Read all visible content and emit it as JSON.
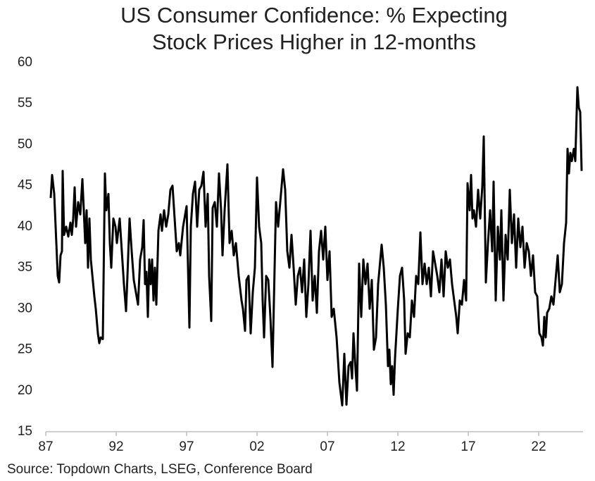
{
  "chart_data": {
    "type": "line",
    "title": [
      "US Consumer Confidence: % Expecting",
      "Stock Prices Higher in 12-months"
    ],
    "source": "Source: Topdown Charts, LSEG, Conference Board",
    "color": "#000000",
    "xlim": [
      1987,
      2025.15
    ],
    "xticks": [
      {
        "value": 1987,
        "label": "87"
      },
      {
        "value": 1992,
        "label": "92"
      },
      {
        "value": 1997,
        "label": "97"
      },
      {
        "value": 2002,
        "label": "02"
      },
      {
        "value": 2007,
        "label": "07"
      },
      {
        "value": 2012,
        "label": "12"
      },
      {
        "value": 2017,
        "label": "17"
      },
      {
        "value": 2022,
        "label": "22"
      }
    ],
    "ylim": [
      15,
      60
    ],
    "yticks": [
      15,
      20,
      25,
      30,
      35,
      40,
      45,
      50,
      55,
      60
    ],
    "x": [
      1987.35,
      1987.45,
      1987.6,
      1987.7,
      1987.85,
      1987.95,
      1988.05,
      1988.15,
      1988.2,
      1988.3,
      1988.45,
      1988.6,
      1988.75,
      1988.85,
      1988.95,
      1989.05,
      1989.15,
      1989.3,
      1989.45,
      1989.6,
      1989.7,
      1989.8,
      1989.9,
      1990.0,
      1990.1,
      1990.2,
      1990.45,
      1990.55,
      1990.7,
      1990.8,
      1990.9,
      1991.05,
      1991.1,
      1991.2,
      1991.3,
      1991.45,
      1991.55,
      1991.65,
      1991.8,
      1991.95,
      1992.05,
      1992.25,
      1992.4,
      1992.55,
      1992.7,
      1992.8,
      1992.95,
      1993.1,
      1993.25,
      1993.4,
      1993.55,
      1993.7,
      1993.85,
      1993.95,
      1994.05,
      1994.15,
      1994.25,
      1994.35,
      1994.45,
      1994.55,
      1994.65,
      1994.75,
      1994.85,
      1995.0,
      1995.15,
      1995.25,
      1995.4,
      1995.55,
      1995.7,
      1995.85,
      1996.0,
      1996.15,
      1996.3,
      1996.45,
      1996.55,
      1996.75,
      1996.9,
      1997.0,
      1997.2,
      1997.3,
      1997.45,
      1997.6,
      1997.75,
      1997.9,
      1998.05,
      1998.2,
      1998.35,
      1998.5,
      1998.6,
      1998.75,
      1998.85,
      1999.0,
      1999.15,
      1999.3,
      1999.45,
      1999.55,
      1999.7,
      1999.9,
      2000.05,
      2000.2,
      2000.35,
      2000.5,
      2000.7,
      2000.9,
      2001.0,
      2001.15,
      2001.25,
      2001.4,
      2001.55,
      2001.7,
      2001.85,
      2002.0,
      2002.15,
      2002.3,
      2002.4,
      2002.5,
      2002.65,
      2002.8,
      2002.95,
      2003.1,
      2003.25,
      2003.35,
      2003.5,
      2003.65,
      2003.85,
      2004.0,
      2004.15,
      2004.3,
      2004.45,
      2004.6,
      2004.75,
      2004.9,
      2005.05,
      2005.2,
      2005.35,
      2005.5,
      2005.65,
      2005.8,
      2005.95,
      2006.1,
      2006.25,
      2006.4,
      2006.55,
      2006.7,
      2006.85,
      2007.0,
      2007.15,
      2007.3,
      2007.45,
      2007.65,
      2007.85,
      2008.05,
      2008.2,
      2008.35,
      2008.5,
      2008.65,
      2008.75,
      2008.85,
      2009.0,
      2009.1,
      2009.25,
      2009.4,
      2009.55,
      2009.7,
      2009.85,
      2010.0,
      2010.15,
      2010.3,
      2010.45,
      2010.6,
      2010.85,
      2011.0,
      2011.15,
      2011.3,
      2011.4,
      2011.5,
      2011.6,
      2011.7,
      2011.8,
      2012.0,
      2012.15,
      2012.3,
      2012.45,
      2012.55,
      2012.7,
      2012.85,
      2013.0,
      2013.15,
      2013.3,
      2013.45,
      2013.6,
      2013.75,
      2013.9,
      2014.05,
      2014.2,
      2014.35,
      2014.5,
      2014.65,
      2014.8,
      2014.95,
      2015.1,
      2015.25,
      2015.4,
      2015.55,
      2015.7,
      2015.85,
      2016.0,
      2016.15,
      2016.25,
      2016.4,
      2016.55,
      2016.7,
      2016.85,
      2016.95,
      2017.1,
      2017.2,
      2017.3,
      2017.4,
      2017.55,
      2017.7,
      2017.85,
      2018.0,
      2018.1,
      2018.25,
      2018.4,
      2018.55,
      2018.7,
      2018.8,
      2018.95,
      2019.1,
      2019.25,
      2019.35,
      2019.5,
      2019.65,
      2019.8,
      2019.95,
      2020.1,
      2020.25,
      2020.4,
      2020.55,
      2020.7,
      2020.85,
      2021.0,
      2021.15,
      2021.3,
      2021.45,
      2021.6,
      2021.75,
      2021.9,
      2022.05,
      2022.2,
      2022.3,
      2022.4,
      2022.5,
      2022.6,
      2022.75,
      2022.9,
      2023.05,
      2023.2,
      2023.35,
      2023.5,
      2023.65,
      2023.8,
      2023.95,
      2024.05,
      2024.15,
      2024.25,
      2024.35,
      2024.5,
      2024.6,
      2024.75,
      2024.85,
      2024.95,
      2025.05
    ],
    "values": [
      43.5,
      46.3,
      44,
      40,
      34,
      33.2,
      36.5,
      37,
      46.8,
      39,
      40,
      38.8,
      40.5,
      39,
      41,
      44.8,
      40,
      43,
      41.5,
      45.8,
      42,
      38,
      42,
      35,
      41,
      36,
      31.5,
      30,
      27,
      25.8,
      26.5,
      26.3,
      33,
      46.5,
      42,
      44,
      38,
      35,
      41,
      40,
      38,
      41,
      37,
      33,
      29.7,
      34,
      41,
      37,
      33.5,
      32,
      30.5,
      36,
      37.5,
      40.8,
      33,
      34.5,
      29,
      36,
      33,
      36,
      31,
      35,
      30.5,
      39.5,
      41.5,
      39.5,
      42,
      40,
      41.5,
      44.5,
      45,
      41,
      37,
      38,
      36.5,
      40,
      41.5,
      42.5,
      27.7,
      40,
      44,
      45.5,
      40,
      44.5,
      45,
      46.7,
      40,
      44,
      34,
      28.5,
      42.3,
      43,
      40,
      46.5,
      42,
      36.5,
      42,
      47.6,
      38,
      39.5,
      36.5,
      38,
      34,
      31,
      30,
      27.3,
      33.5,
      34,
      27,
      32,
      35,
      46,
      40,
      38,
      31,
      26.5,
      34,
      33.5,
      29,
      22.9,
      35,
      43,
      40,
      43,
      47,
      44.5,
      37,
      35,
      39,
      35,
      30.5,
      34,
      35,
      32,
      36,
      29,
      33,
      39.5,
      31,
      34,
      29.5,
      37,
      39.5,
      36,
      40,
      33.5,
      37,
      29,
      30,
      26.5,
      21,
      18.2,
      24.5,
      18.3,
      23,
      23.5,
      21.5,
      27,
      22.5,
      20,
      35.5,
      29,
      36,
      33,
      35.5,
      30,
      33.5,
      25,
      26.5,
      33,
      37.8,
      35,
      30.5,
      23,
      25,
      20.8,
      23,
      19.5,
      24,
      30,
      34,
      35,
      31,
      24.5,
      27,
      26.5,
      31,
      29,
      34,
      33,
      39.3,
      33,
      35.5,
      33,
      35,
      31.5,
      37,
      35.5,
      34,
      32,
      36,
      31.5,
      37,
      35,
      36,
      33,
      31,
      29,
      27,
      31,
      30.5,
      33.5,
      31,
      45.3,
      42,
      46.3,
      41,
      42,
      40,
      44.5,
      41,
      45,
      51,
      33.2,
      38,
      42,
      37,
      45.5,
      31,
      40,
      36,
      42,
      31,
      39,
      36,
      44.5,
      38,
      41.5,
      35,
      41,
      37.5,
      40,
      35,
      38,
      37,
      34,
      36.5,
      32,
      31.5,
      27,
      26.5,
      25.5,
      29,
      26.5,
      29.5,
      30,
      31.5,
      30.5,
      33.5,
      36.5,
      32,
      33,
      38,
      40.5,
      49.5,
      46.5,
      49,
      48,
      49.5,
      48,
      57,
      54.5,
      54,
      46.8
    ]
  }
}
